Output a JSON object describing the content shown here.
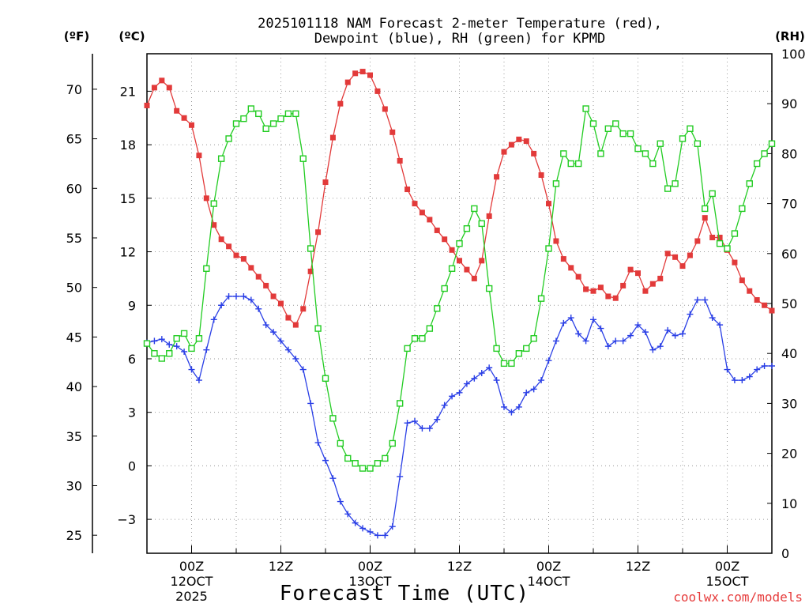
{
  "chart_data": {
    "type": "line",
    "title_line1": "2025101118 NAM Forecast 2-meter Temperature (red),",
    "title_line2": "Dewpoint (blue), RH (green) for KPMD",
    "left_outer_unit": "(ºF)",
    "left_inner_unit": "(ºC)",
    "right_unit": "(RH)",
    "xlabel": "Forecast Time (UTC)",
    "credit": "coolwx.com/models",
    "x_range_hours": [
      18,
      102
    ],
    "celsius_range": [
      -4.9,
      23.1
    ],
    "rh_range": [
      0,
      100
    ],
    "fahrenheit_ticks": [
      "25",
      "30",
      "35",
      "40",
      "45",
      "50",
      "55",
      "60",
      "65",
      "70"
    ],
    "celsius_ticks": [
      "-3",
      "0",
      "3",
      "6",
      "9",
      "12",
      "15",
      "18",
      "21"
    ],
    "rh_ticks": [
      "0",
      "10",
      "20",
      "30",
      "40",
      "50",
      "60",
      "70",
      "80",
      "90",
      "100"
    ],
    "x_ticks": [
      {
        "hour": 24,
        "label": "00Z",
        "sub": "12OCT",
        "sub2": "2025"
      },
      {
        "hour": 36,
        "label": "12Z",
        "sub": "",
        "sub2": ""
      },
      {
        "hour": 48,
        "label": "00Z",
        "sub": "13OCT",
        "sub2": ""
      },
      {
        "hour": 60,
        "label": "12Z",
        "sub": "",
        "sub2": ""
      },
      {
        "hour": 72,
        "label": "00Z",
        "sub": "14OCT",
        "sub2": ""
      },
      {
        "hour": 84,
        "label": "12Z",
        "sub": "",
        "sub2": ""
      },
      {
        "hour": 96,
        "label": "00Z",
        "sub": "15OCT",
        "sub2": ""
      }
    ],
    "x_hours": [
      18,
      19,
      20,
      21,
      22,
      23,
      24,
      25,
      26,
      27,
      28,
      29,
      30,
      31,
      32,
      33,
      34,
      35,
      36,
      37,
      38,
      39,
      40,
      41,
      42,
      43,
      44,
      45,
      46,
      47,
      48,
      49,
      50,
      51,
      52,
      53,
      54,
      55,
      56,
      57,
      58,
      59,
      60,
      61,
      62,
      63,
      64,
      65,
      66,
      67,
      68,
      69,
      70,
      71,
      72,
      73,
      74,
      75,
      76,
      77,
      78,
      79,
      80,
      81,
      82,
      83,
      84,
      85,
      86,
      87,
      88,
      89,
      90,
      91,
      92,
      93,
      94,
      95,
      96,
      97,
      98,
      99,
      100,
      101,
      102
    ],
    "series": [
      {
        "name": "2-meter Temperature (°C)",
        "color": "#e23a3a",
        "marker": "square-filled",
        "axis": "celsius",
        "values": [
          20.2,
          21.2,
          21.6,
          21.2,
          19.9,
          19.5,
          19.1,
          17.4,
          15.0,
          13.5,
          12.7,
          12.3,
          11.8,
          11.6,
          11.1,
          10.6,
          10.1,
          9.5,
          9.1,
          8.3,
          7.9,
          8.8,
          10.9,
          13.1,
          15.9,
          18.4,
          20.3,
          21.5,
          22.0,
          22.1,
          21.9,
          21.0,
          20.0,
          18.7,
          17.1,
          15.5,
          14.7,
          14.2,
          13.8,
          13.2,
          12.7,
          12.1,
          11.5,
          11.0,
          10.5,
          11.5,
          14.0,
          16.2,
          17.6,
          18.0,
          18.3,
          18.2,
          17.5,
          16.3,
          14.7,
          12.6,
          11.6,
          11.1,
          10.6,
          9.9,
          9.8,
          10.0,
          9.5,
          9.4,
          10.1,
          11.0,
          10.8,
          9.8,
          10.2,
          10.5,
          11.9,
          11.7,
          11.2,
          11.8,
          12.6,
          13.9,
          12.8,
          12.8,
          12.1,
          11.4,
          10.4,
          9.8,
          9.3,
          9.0,
          8.7
        ]
      },
      {
        "name": "Dewpoint (°C)",
        "color": "#2a3fe6",
        "marker": "plus",
        "axis": "celsius",
        "values": [
          6.9,
          7.0,
          7.1,
          6.8,
          6.7,
          6.4,
          5.4,
          4.8,
          6.5,
          8.2,
          9.0,
          9.5,
          9.5,
          9.5,
          9.3,
          8.8,
          7.9,
          7.5,
          7.0,
          6.5,
          6.0,
          5.4,
          3.5,
          1.3,
          0.3,
          -0.7,
          -2.0,
          -2.7,
          -3.2,
          -3.5,
          -3.7,
          -3.9,
          -3.9,
          -3.4,
          -0.6,
          2.4,
          2.5,
          2.1,
          2.1,
          2.6,
          3.4,
          3.9,
          4.1,
          4.6,
          4.9,
          5.2,
          5.5,
          4.8,
          3.3,
          3.0,
          3.3,
          4.1,
          4.3,
          4.8,
          5.9,
          7.0,
          8.0,
          8.3,
          7.4,
          7.0,
          8.2,
          7.7,
          6.7,
          7.0,
          7.0,
          7.3,
          7.9,
          7.5,
          6.5,
          6.7,
          7.6,
          7.3,
          7.4,
          8.5,
          9.3,
          9.3,
          8.3,
          7.9,
          5.4,
          4.8,
          4.8,
          5.0,
          5.4,
          5.6,
          5.6
        ]
      },
      {
        "name": "RH (%)",
        "color": "#22cc22",
        "marker": "square-open",
        "axis": "rh",
        "values": [
          42,
          40,
          39,
          40,
          43,
          44,
          41,
          43,
          57,
          70,
          79,
          83,
          86,
          87,
          89,
          88,
          85,
          86,
          87,
          88,
          88,
          79,
          61,
          45,
          35,
          27,
          22,
          19,
          18,
          17,
          17,
          18,
          19,
          22,
          30,
          41,
          43,
          43,
          45,
          49,
          53,
          57,
          62,
          65,
          69,
          66,
          53,
          41,
          38,
          38,
          40,
          41,
          43,
          51,
          61,
          74,
          80,
          78,
          78,
          89,
          86,
          80,
          85,
          86,
          84,
          84,
          81,
          80,
          78,
          82,
          73,
          74,
          83,
          85,
          82,
          69,
          72,
          62,
          61,
          64,
          69,
          74,
          78,
          80,
          82
        ]
      }
    ]
  }
}
